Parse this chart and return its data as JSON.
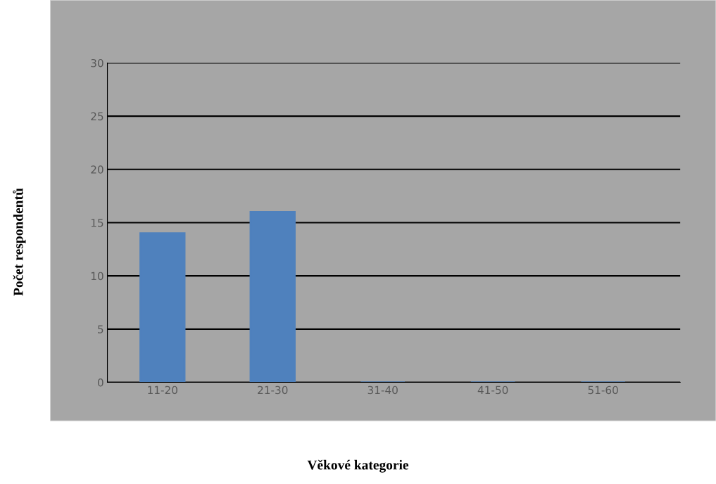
{
  "chart_data": {
    "type": "bar",
    "xlabel": "Věkové kategorie",
    "ylabel": "Počet respondentů",
    "categories": [
      "11-20",
      "21-30",
      "31-40",
      "41-50",
      "51-60"
    ],
    "values": [
      14,
      16,
      0,
      0,
      0
    ],
    "color": "#4f81bd",
    "ylim": [
      0,
      30
    ],
    "yticks": [
      0,
      5,
      10,
      15,
      20,
      25,
      30
    ],
    "grid": "y",
    "legend": false
  }
}
